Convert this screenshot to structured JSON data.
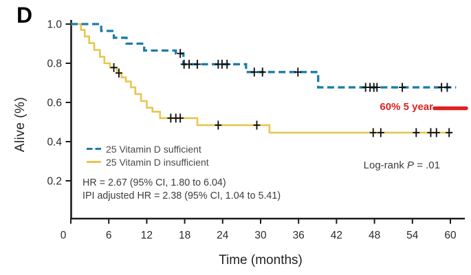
{
  "panel_label": "D",
  "colors": {
    "sufficient": "#1d7ca6",
    "insufficient": "#e7c64f",
    "annotation_red": "#de2120",
    "axis": "#1a1a1a",
    "tick_text": "#2a2a2a"
  },
  "chart_data": {
    "type": "line",
    "subtype": "kaplan-meier-step",
    "title": "",
    "xlabel": "Time (months)",
    "ylabel": "Alive (%)",
    "xlim": [
      0,
      60
    ],
    "ylim": [
      0,
      1.0
    ],
    "x_ticks": [
      0,
      6,
      12,
      18,
      24,
      30,
      36,
      42,
      48,
      54,
      60
    ],
    "y_ticks": [
      0.2,
      0.4,
      0.6,
      0.8,
      1.0
    ],
    "grid": false,
    "legend_position": "inside-lower-left",
    "series": [
      {
        "name": "25 Vitamin D sufficient",
        "style": "dashed",
        "color_key": "sufficient",
        "end_month": 60.9,
        "steps": [
          [
            0,
            1.0
          ],
          [
            4.8,
            0.965
          ],
          [
            6.8,
            0.93
          ],
          [
            8.8,
            0.9
          ],
          [
            11.6,
            0.865
          ],
          [
            16.6,
            0.85
          ],
          [
            17.8,
            0.795
          ],
          [
            27.7,
            0.755
          ],
          [
            39.1,
            0.677
          ]
        ],
        "censors": [
          [
            17.3,
            0.85
          ],
          [
            17.9,
            0.795
          ],
          [
            18.7,
            0.795
          ],
          [
            20.0,
            0.795
          ],
          [
            23.3,
            0.795
          ],
          [
            23.9,
            0.795
          ],
          [
            24.7,
            0.795
          ],
          [
            29.0,
            0.755
          ],
          [
            30.3,
            0.755
          ],
          [
            35.9,
            0.755
          ],
          [
            46.6,
            0.677
          ],
          [
            47.3,
            0.677
          ],
          [
            47.9,
            0.677
          ],
          [
            48.4,
            0.677
          ],
          [
            52.4,
            0.677
          ],
          [
            58.6,
            0.677
          ],
          [
            59.5,
            0.677
          ]
        ]
      },
      {
        "name": "25 Vitamin D insufficient",
        "style": "solid",
        "color_key": "insufficient",
        "end_month": 60.3,
        "steps": [
          [
            0,
            1.0
          ],
          [
            1.6,
            0.97
          ],
          [
            2.2,
            0.937
          ],
          [
            2.9,
            0.903
          ],
          [
            3.7,
            0.868
          ],
          [
            4.6,
            0.833
          ],
          [
            5.3,
            0.8
          ],
          [
            6.2,
            0.778
          ],
          [
            7.3,
            0.75
          ],
          [
            8.0,
            0.728
          ],
          [
            8.7,
            0.707
          ],
          [
            9.5,
            0.677
          ],
          [
            10.2,
            0.643
          ],
          [
            11.1,
            0.607
          ],
          [
            12.0,
            0.573
          ],
          [
            12.9,
            0.553
          ],
          [
            14.1,
            0.52
          ],
          [
            20.0,
            0.484
          ],
          [
            31.4,
            0.446
          ]
        ],
        "censors": [
          [
            6.8,
            0.778
          ],
          [
            7.6,
            0.75
          ],
          [
            15.8,
            0.52
          ],
          [
            16.6,
            0.52
          ],
          [
            17.3,
            0.52
          ],
          [
            23.3,
            0.484
          ],
          [
            29.4,
            0.484
          ],
          [
            47.8,
            0.446
          ],
          [
            49.0,
            0.446
          ],
          [
            54.6,
            0.446
          ],
          [
            56.9,
            0.446
          ],
          [
            57.8,
            0.446
          ],
          [
            59.8,
            0.446
          ]
        ]
      }
    ],
    "annotations": {
      "five_year": {
        "text": "60% 5 year",
        "at_month": 60,
        "at_value": 0.57
      },
      "log_rank": {
        "prefix": "Log-rank ",
        "p_symbol": "P",
        "rest": " = .01"
      },
      "hr_line1": "HR = 2.67 (95% CI, 1.80 to 6.04)",
      "hr_line2": "IPI adjusted HR = 2.38 (95% CI, 1.04 to 5.41)"
    }
  }
}
